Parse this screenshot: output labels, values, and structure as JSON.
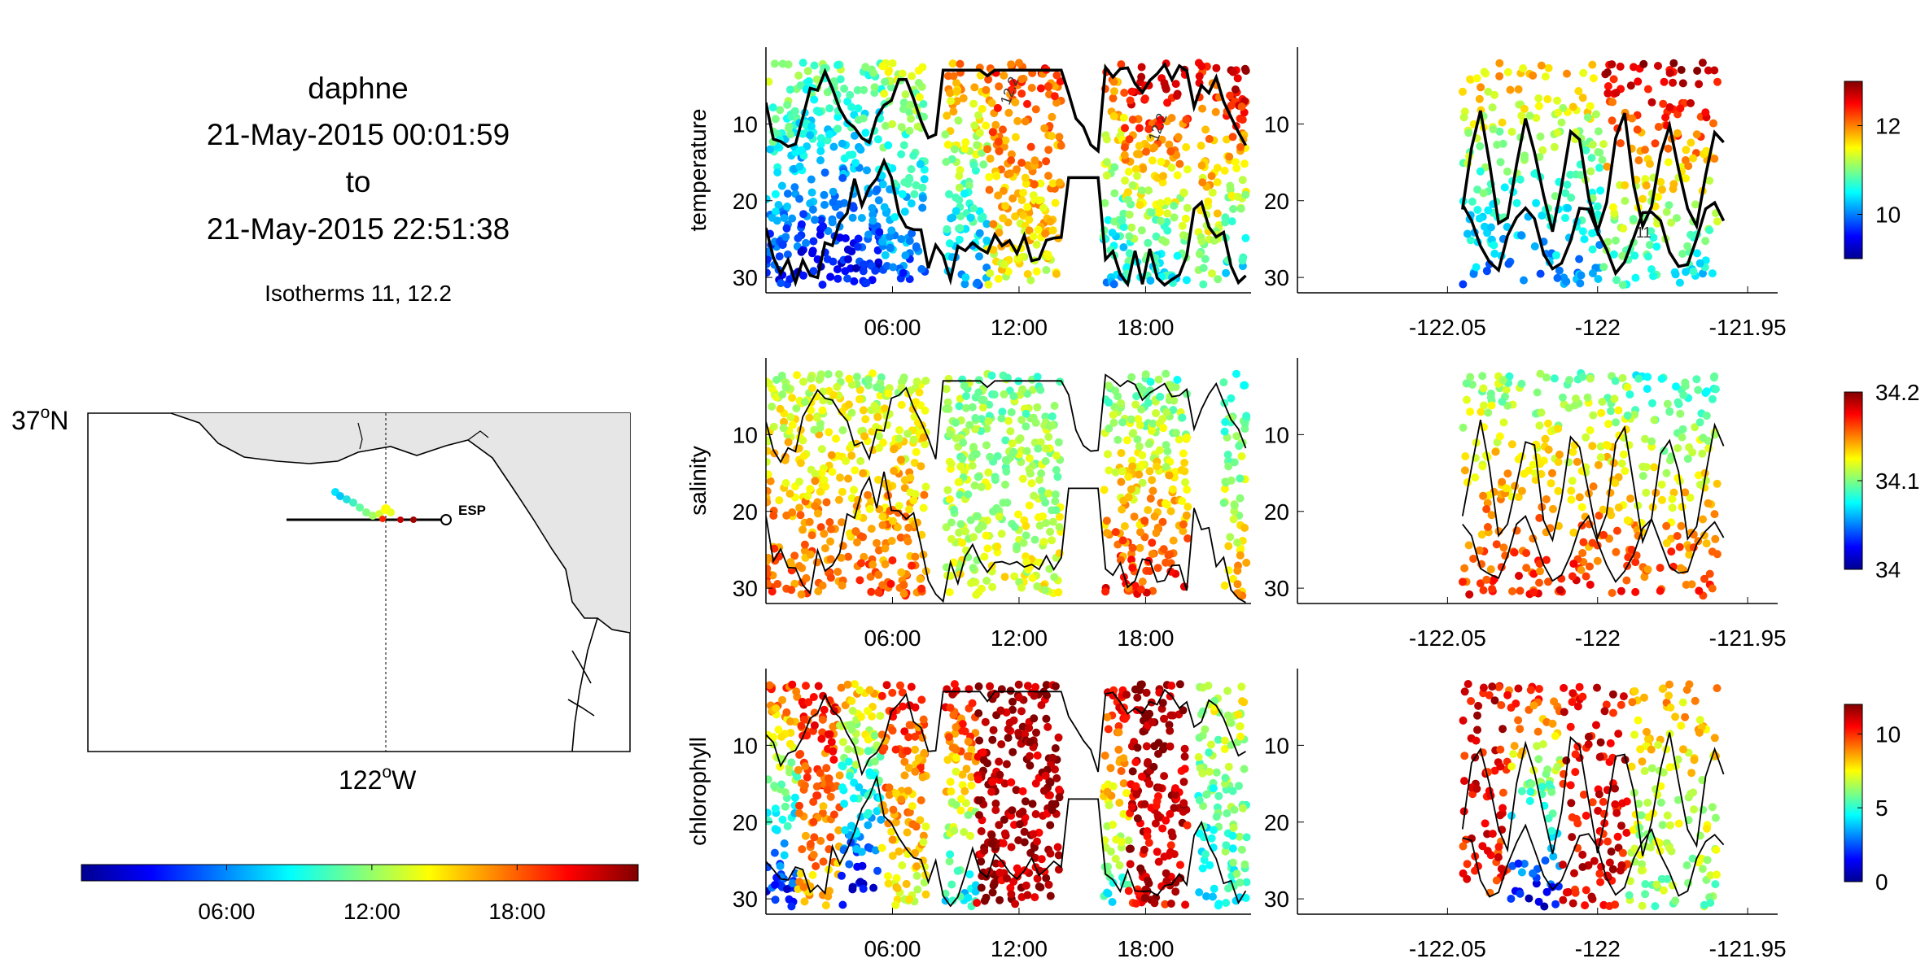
{
  "header": {
    "title": "daphne",
    "start": "21-May-2015 00:01:59",
    "to": "to",
    "end": "21-May-2015 22:51:38",
    "subtitle": "Isotherms 11, 12.2"
  },
  "map": {
    "lat_label": "37",
    "lat_suffix": "N",
    "lon_label": "122",
    "lon_suffix": "W",
    "degree_mark": "o",
    "site_label": "ESP",
    "land_color": "#e6e6e6",
    "track_color": "#000000"
  },
  "time_colorbar": {
    "ticks": [
      "06:00",
      "12:00",
      "18:00"
    ],
    "colormap": "jet"
  },
  "chart_data": [
    {
      "type": "scatter",
      "name": "temperature-vs-time",
      "ylabel": "temperature",
      "x_ticks": [
        "06:00",
        "12:00",
        "18:00"
      ],
      "y_ticks": [
        "10",
        "20",
        "30"
      ],
      "ylim": [
        0,
        32
      ],
      "y_reversed": true,
      "contour_labels": [
        "11",
        "12.2"
      ],
      "color_ticks": [
        "10",
        "12"
      ],
      "color_range": [
        9,
        13
      ],
      "slabs": [
        {
          "t": [
            0.0,
            1.5
          ],
          "c": [
            0.55,
            0.15
          ]
        },
        {
          "t": [
            1.5,
            5.5
          ],
          "c": [
            0.5,
            0.1
          ]
        },
        {
          "t": [
            5.5,
            7.6
          ],
          "c": [
            0.6,
            0.2
          ]
        },
        {
          "t": [
            8.5,
            10.5
          ],
          "c": [
            0.75,
            0.25
          ]
        },
        {
          "t": [
            10.5,
            14.0
          ],
          "c": [
            0.82,
            0.6
          ]
        },
        {
          "t": [
            16.0,
            17.0
          ],
          "c": [
            0.78,
            0.3
          ]
        },
        {
          "t": [
            17.0,
            20.0
          ],
          "c": [
            0.95,
            0.35
          ]
        },
        {
          "t": [
            20.5,
            21.5
          ],
          "c": [
            0.85,
            0.5
          ]
        },
        {
          "t": [
            21.7,
            22.8
          ],
          "c": [
            0.97,
            0.3
          ]
        }
      ]
    },
    {
      "type": "scatter",
      "name": "temperature-vs-longitude",
      "ylabel": "",
      "x_ticks": [
        "-122.05",
        "-122",
        "-121.95"
      ],
      "y_ticks": [
        "10",
        "20",
        "30"
      ],
      "ylim": [
        0,
        32
      ],
      "y_reversed": true,
      "contour_labels": [
        "11"
      ],
      "slabs": [
        {
          "lon": [
            -122.045,
            -121.998
          ],
          "c": [
            0.7,
            0.25
          ]
        },
        {
          "lon": [
            -121.998,
            -121.99
          ],
          "c": [
            0.92,
            0.4
          ]
        },
        {
          "lon": [
            -121.99,
            -121.96
          ],
          "c": [
            0.97,
            0.35
          ]
        }
      ]
    },
    {
      "type": "scatter",
      "name": "salinity-vs-time",
      "ylabel": "salinity",
      "x_ticks": [
        "06:00",
        "12:00",
        "18:00"
      ],
      "y_ticks": [
        "10",
        "20",
        "30"
      ],
      "ylim": [
        0,
        32
      ],
      "y_reversed": true,
      "color_ticks": [
        "34",
        "34.1",
        "34.2"
      ],
      "color_range": [
        34.0,
        34.2
      ],
      "slabs": [
        {
          "t": [
            0.0,
            7.6
          ],
          "c": [
            0.55,
            0.8
          ]
        },
        {
          "t": [
            8.5,
            14.0
          ],
          "c": [
            0.5,
            0.6
          ]
        },
        {
          "t": [
            16.0,
            20.0
          ],
          "c": [
            0.45,
            0.85
          ]
        },
        {
          "t": [
            21.7,
            22.8
          ],
          "c": [
            0.4,
            0.7
          ]
        }
      ]
    },
    {
      "type": "scatter",
      "name": "salinity-vs-longitude",
      "ylabel": "",
      "x_ticks": [
        "-122.05",
        "-122",
        "-121.95"
      ],
      "y_ticks": [
        "10",
        "20",
        "30"
      ],
      "ylim": [
        0,
        32
      ],
      "y_reversed": true,
      "slabs": [
        {
          "lon": [
            -122.045,
            -121.99
          ],
          "c": [
            0.5,
            0.85
          ]
        },
        {
          "lon": [
            -121.99,
            -121.96
          ],
          "c": [
            0.4,
            0.85
          ]
        }
      ]
    },
    {
      "type": "scatter",
      "name": "chlorophyll-vs-time",
      "ylabel": "chlorophyll",
      "x_ticks": [
        "06:00",
        "12:00",
        "18:00"
      ],
      "y_ticks": [
        "10",
        "20",
        "30"
      ],
      "ylim": [
        0,
        32
      ],
      "y_reversed": true,
      "color_ticks": [
        "0",
        "5",
        "10"
      ],
      "color_range": [
        0,
        12
      ],
      "slabs": [
        {
          "t": [
            0.0,
            1.5
          ],
          "c": [
            0.8,
            0.1
          ]
        },
        {
          "t": [
            1.5,
            3.5
          ],
          "c": [
            0.85,
            0.7
          ]
        },
        {
          "t": [
            3.5,
            5.5
          ],
          "c": [
            0.7,
            0.08
          ]
        },
        {
          "t": [
            5.5,
            7.6
          ],
          "c": [
            0.85,
            0.6
          ]
        },
        {
          "t": [
            8.5,
            10.0
          ],
          "c": [
            0.9,
            0.35
          ]
        },
        {
          "t": [
            10.0,
            14.0
          ],
          "c": [
            0.97,
            0.95
          ]
        },
        {
          "t": [
            16.0,
            17.2
          ],
          "c": [
            0.9,
            0.4
          ]
        },
        {
          "t": [
            17.2,
            20.0
          ],
          "c": [
            0.97,
            0.9
          ]
        },
        {
          "t": [
            20.5,
            21.5
          ],
          "c": [
            0.6,
            0.3
          ]
        },
        {
          "t": [
            21.7,
            22.8
          ],
          "c": [
            0.6,
            0.4
          ]
        }
      ]
    },
    {
      "type": "scatter",
      "name": "chlorophyll-vs-longitude",
      "ylabel": "",
      "x_ticks": [
        "-122.05",
        "-122",
        "-121.95"
      ],
      "y_ticks": [
        "10",
        "20",
        "30"
      ],
      "ylim": [
        0,
        32
      ],
      "y_reversed": true,
      "slabs": [
        {
          "lon": [
            -122.045,
            -122.03
          ],
          "c": [
            0.9,
            0.85
          ]
        },
        {
          "lon": [
            -122.03,
            -122.012
          ],
          "c": [
            0.85,
            0.1
          ]
        },
        {
          "lon": [
            -122.012,
            -121.99
          ],
          "c": [
            0.9,
            0.9
          ]
        },
        {
          "lon": [
            -121.99,
            -121.96
          ],
          "c": [
            0.7,
            0.5
          ]
        }
      ]
    }
  ]
}
